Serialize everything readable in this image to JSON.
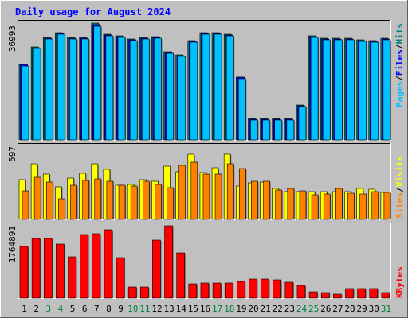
{
  "chart_data": [
    {
      "type": "bar",
      "title": "Daily usage for August 2024",
      "panel": "top",
      "categories": [
        "1",
        "2",
        "3",
        "4",
        "5",
        "6",
        "7",
        "8",
        "9",
        "10",
        "11",
        "12",
        "13",
        "14",
        "15",
        "16",
        "17",
        "18",
        "19",
        "20",
        "21",
        "22",
        "23",
        "24",
        "25",
        "26",
        "27",
        "28",
        "29",
        "30",
        "31"
      ],
      "y_tick_label": "36993",
      "ymax": 36993,
      "series": [
        {
          "name": "Hits",
          "color": "#008080",
          "values": [
            24000,
            29500,
            32500,
            34000,
            32500,
            32500,
            36993,
            33500,
            33000,
            32000,
            32500,
            32700,
            28000,
            27000,
            31500,
            34000,
            34000,
            33500,
            20000,
            6800,
            6800,
            6800,
            6800,
            11000,
            33000,
            32300,
            32300,
            32300,
            31800,
            31500,
            32300
          ]
        },
        {
          "name": "Files",
          "color": "#0000ff",
          "values": [
            23800,
            29200,
            32300,
            33800,
            32300,
            32300,
            36500,
            33300,
            32800,
            31800,
            32300,
            32500,
            27800,
            26800,
            31300,
            33800,
            33800,
            33300,
            19800,
            6600,
            6600,
            6600,
            6600,
            10800,
            32800,
            32000,
            32000,
            32000,
            31500,
            31300,
            32000
          ]
        },
        {
          "name": "Pages",
          "color": "#00c0ff",
          "values": [
            23500,
            28900,
            32000,
            33500,
            32000,
            32000,
            36000,
            33000,
            32500,
            31500,
            32000,
            32200,
            27500,
            26500,
            31000,
            33500,
            33500,
            33000,
            19500,
            6300,
            6300,
            6300,
            6300,
            10500,
            32500,
            31700,
            31700,
            31700,
            31200,
            31000,
            31700
          ]
        }
      ]
    },
    {
      "type": "bar",
      "panel": "middle",
      "categories": [
        "1",
        "2",
        "3",
        "4",
        "5",
        "6",
        "7",
        "8",
        "9",
        "10",
        "11",
        "12",
        "13",
        "14",
        "15",
        "16",
        "17",
        "18",
        "19",
        "20",
        "21",
        "22",
        "23",
        "24",
        "25",
        "26",
        "27",
        "28",
        "29",
        "30",
        "31"
      ],
      "y_tick_label": "597",
      "ymax": 597,
      "series": [
        {
          "name": "Visits",
          "color": "#ffff00",
          "values": [
            323,
            452,
            368,
            264,
            336,
            375,
            454,
            411,
            282,
            286,
            325,
            314,
            432,
            387,
            530,
            384,
            420,
            535,
            273,
            296,
            306,
            255,
            225,
            225,
            225,
            225,
            225,
            225,
            255,
            248,
            222
          ]
        },
        {
          "name": "Sites",
          "color": "#ff8000",
          "values": [
            233,
            345,
            302,
            171,
            278,
            319,
            332,
            312,
            281,
            273,
            309,
            287,
            260,
            443,
            464,
            368,
            371,
            456,
            413,
            314,
            309,
            238,
            255,
            235,
            204,
            207,
            251,
            214,
            205,
            229,
            218
          ]
        }
      ]
    },
    {
      "type": "bar",
      "panel": "bottom",
      "categories": [
        "1",
        "2",
        "3",
        "4",
        "5",
        "6",
        "7",
        "8",
        "9",
        "10",
        "11",
        "12",
        "13",
        "14",
        "15",
        "16",
        "17",
        "18",
        "19",
        "20",
        "21",
        "22",
        "23",
        "24",
        "25",
        "26",
        "27",
        "28",
        "29",
        "30",
        "31"
      ],
      "y_tick_label": "1764891",
      "ymax": 1764891,
      "series": [
        {
          "name": "KBytes",
          "color": "#ff0000",
          "values": [
            1258000,
            1460000,
            1446000,
            1326000,
            1010000,
            1557000,
            1571000,
            1664000,
            983000,
            270000,
            270000,
            1411000,
            1764891,
            1098000,
            345000,
            377000,
            363000,
            363000,
            400000,
            466000,
            466000,
            453000,
            383000,
            317000,
            157000,
            127000,
            104000,
            234000,
            241000,
            234000,
            145000
          ]
        }
      ]
    }
  ],
  "chart": {
    "title": "Daily usage for August 2024",
    "legend_top": [
      {
        "text": "Pages",
        "color": "#00c0ff"
      },
      {
        "text": "/",
        "color": "#000000"
      },
      {
        "text": "Files",
        "color": "#0000ff"
      },
      {
        "text": "/",
        "color": "#000000"
      },
      {
        "text": "Hits",
        "color": "#008080"
      }
    ],
    "legend_middle": [
      {
        "text": "Sites",
        "color": "#ff8000"
      },
      {
        "text": "/",
        "color": "#000000"
      },
      {
        "text": "Visits",
        "color": "#ffff00"
      }
    ],
    "legend_bottom": [
      {
        "text": "KBytes",
        "color": "#ff0000"
      }
    ],
    "day_labels": [
      {
        "label": "1",
        "weekend": false
      },
      {
        "label": "2",
        "weekend": false
      },
      {
        "label": "3",
        "weekend": true
      },
      {
        "label": "4",
        "weekend": true
      },
      {
        "label": "5",
        "weekend": false
      },
      {
        "label": "6",
        "weekend": false
      },
      {
        "label": "7",
        "weekend": false
      },
      {
        "label": "8",
        "weekend": false
      },
      {
        "label": "9",
        "weekend": false
      },
      {
        "label": "10",
        "weekend": true
      },
      {
        "label": "11",
        "weekend": true
      },
      {
        "label": "12",
        "weekend": false
      },
      {
        "label": "13",
        "weekend": false
      },
      {
        "label": "14",
        "weekend": false
      },
      {
        "label": "15",
        "weekend": false
      },
      {
        "label": "16",
        "weekend": false
      },
      {
        "label": "17",
        "weekend": true
      },
      {
        "label": "18",
        "weekend": true
      },
      {
        "label": "19",
        "weekend": false
      },
      {
        "label": "20",
        "weekend": false
      },
      {
        "label": "21",
        "weekend": false
      },
      {
        "label": "22",
        "weekend": false
      },
      {
        "label": "23",
        "weekend": false
      },
      {
        "label": "24",
        "weekend": true
      },
      {
        "label": "25",
        "weekend": true
      },
      {
        "label": "26",
        "weekend": false
      },
      {
        "label": "27",
        "weekend": false
      },
      {
        "label": "28",
        "weekend": false
      },
      {
        "label": "29",
        "weekend": false
      },
      {
        "label": "30",
        "weekend": false
      },
      {
        "label": "31",
        "weekend": true
      }
    ],
    "colors": {
      "background": "#c0c0c0",
      "title": "#0000ff",
      "weekday_label": "#000000",
      "weekend_label": "#008040",
      "bar_shadow": "#606060"
    }
  }
}
